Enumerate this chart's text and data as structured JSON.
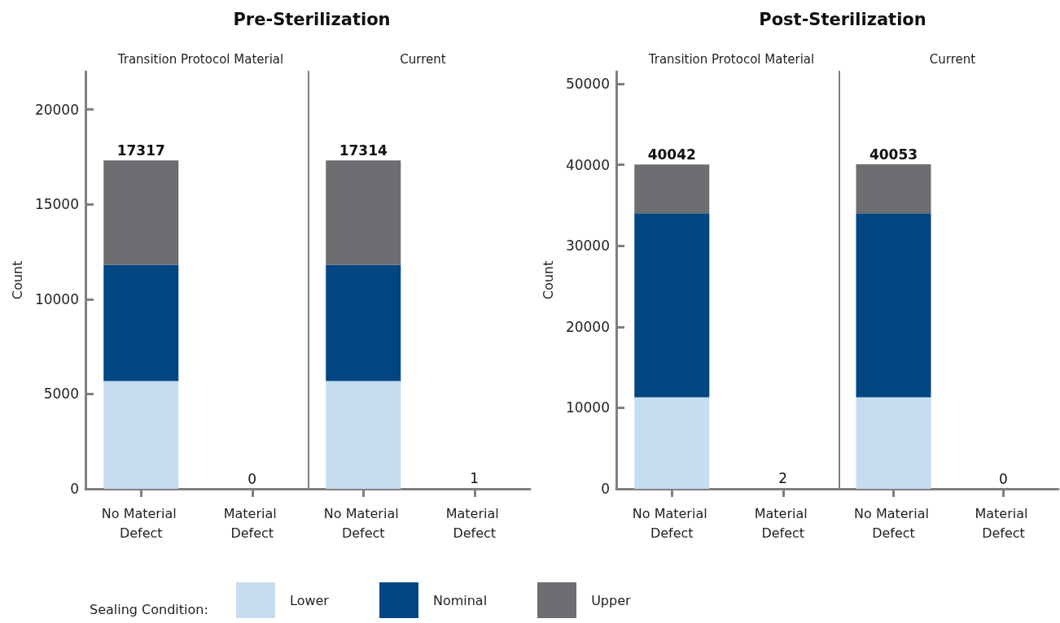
{
  "chart_data": [
    {
      "type": "bar",
      "title": "Pre-Sterilization",
      "subtitle": "Transition Protocol Material",
      "ylabel": "Count",
      "legend_title": "Sealing Condition:",
      "legend": "bottom",
      "grid": false,
      "stacked": true,
      "categories": [
        "No Material Defect",
        "Material Defect"
      ],
      "ylim": [
        0,
        22000
      ],
      "yticks": [
        0,
        5000,
        10000,
        15000,
        20000
      ],
      "totals": [
        "17317",
        "0"
      ],
      "series": [
        {
          "name": "Lower",
          "color": "#c6ddf1",
          "values": [
            5680,
            0
          ]
        },
        {
          "name": "Nominal",
          "color": "#004680",
          "values": [
            6140,
            0
          ]
        },
        {
          "name": "Upper",
          "color": "#6d6e71",
          "values": [
            5497,
            0
          ]
        }
      ]
    },
    {
      "type": "bar",
      "subtitle": "Current",
      "grid": false,
      "stacked": true,
      "tick_labels": "x",
      "categories": [
        "No Material Defect",
        "Material Defect"
      ],
      "ylim": [
        0,
        22000
      ],
      "yticks": [
        0,
        5000,
        10000,
        15000,
        20000
      ],
      "totals": [
        "17314",
        "1"
      ],
      "series": [
        {
          "color": "#c6ddf1",
          "values": [
            5680,
            1
          ]
        },
        {
          "color": "#004680",
          "values": [
            6140,
            0
          ]
        },
        {
          "color": "#6d6e71",
          "values": [
            5494,
            0
          ]
        }
      ]
    },
    {
      "type": "bar",
      "title": "Post-Sterilization",
      "subtitle": "Transition Protocol Material",
      "ylabel": "Count",
      "grid": false,
      "stacked": true,
      "categories": [
        "No Material Defect",
        "Material Defect"
      ],
      "ylim": [
        0,
        51500
      ],
      "yticks": [
        0,
        10000,
        20000,
        30000,
        40000,
        50000
      ],
      "totals": [
        "40042",
        "2"
      ],
      "series": [
        {
          "color": "#c6ddf1",
          "values": [
            11300,
            2
          ]
        },
        {
          "color": "#004680",
          "values": [
            22700,
            0
          ]
        },
        {
          "color": "#6d6e71",
          "values": [
            6042,
            0
          ]
        }
      ]
    },
    {
      "type": "bar",
      "subtitle": "Current",
      "grid": false,
      "stacked": true,
      "tick_labels": "x",
      "categories": [
        "No Material Defect",
        "Material Defect"
      ],
      "ylim": [
        0,
        51500
      ],
      "yticks": [
        0,
        10000,
        20000,
        30000,
        40000,
        50000
      ],
      "totals": [
        "40053",
        "0"
      ],
      "series": [
        {
          "color": "#c6ddf1",
          "values": [
            11300,
            0
          ]
        },
        {
          "color": "#004680",
          "values": [
            22700,
            0
          ]
        },
        {
          "color": "#6d6e71",
          "values": [
            6053,
            0
          ]
        }
      ]
    }
  ]
}
